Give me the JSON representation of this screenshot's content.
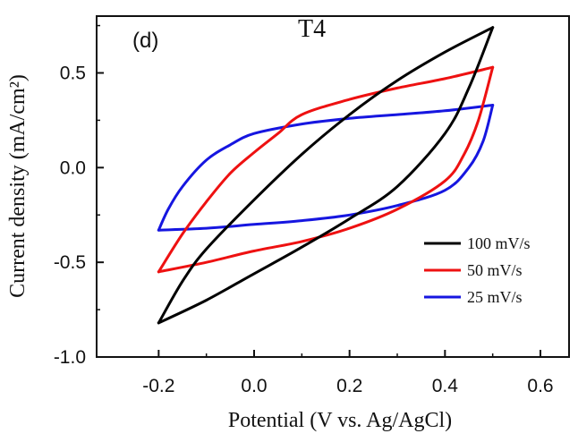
{
  "chart_data": {
    "type": "line",
    "panel_label": "(d)",
    "title": "T4",
    "xlabel": "Potential (V vs. Ag/AgCl)",
    "ylabel": "Current density (mA/cm²)",
    "xlim": [
      -0.33,
      0.66
    ],
    "ylim": [
      -1.0,
      0.8
    ],
    "xticks": [
      -0.2,
      0.0,
      0.2,
      0.4,
      0.6
    ],
    "xtick_labels": [
      "-0.2",
      "0.0",
      "0.2",
      "0.4",
      "0.6"
    ],
    "yticks": [
      -1.0,
      -0.5,
      0.0,
      0.5
    ],
    "ytick_labels": [
      "-1.0",
      "-0.5",
      "0.0",
      "0.5"
    ],
    "legend_position": "lower-right",
    "series": [
      {
        "name": "100 mV/s",
        "color": "#000000",
        "anodic": {
          "x": [
            -0.2,
            -0.15,
            -0.1,
            0.0,
            0.1,
            0.2,
            0.3,
            0.4,
            0.5
          ],
          "y": [
            -0.82,
            -0.6,
            -0.43,
            -0.17,
            0.07,
            0.28,
            0.46,
            0.61,
            0.74
          ]
        },
        "cathodic": {
          "x": [
            0.5,
            0.45,
            0.4,
            0.3,
            0.2,
            0.1,
            0.0,
            -0.1,
            -0.2
          ],
          "y": [
            0.74,
            0.42,
            0.18,
            -0.1,
            -0.27,
            -0.42,
            -0.56,
            -0.7,
            -0.82
          ]
        }
      },
      {
        "name": "50 mV/s",
        "color": "#ee1111",
        "anodic": {
          "x": [
            -0.2,
            -0.15,
            -0.1,
            -0.05,
            0.0,
            0.05,
            0.1,
            0.2,
            0.3,
            0.4,
            0.5
          ],
          "y": [
            -0.55,
            -0.35,
            -0.18,
            -0.03,
            0.08,
            0.18,
            0.28,
            0.36,
            0.42,
            0.47,
            0.53
          ]
        },
        "cathodic": {
          "x": [
            0.5,
            0.47,
            0.44,
            0.4,
            0.3,
            0.2,
            0.1,
            0.0,
            -0.1,
            -0.2
          ],
          "y": [
            0.53,
            0.25,
            0.07,
            -0.07,
            -0.22,
            -0.32,
            -0.39,
            -0.44,
            -0.5,
            -0.55
          ]
        }
      },
      {
        "name": "25 mV/s",
        "color": "#1616e0",
        "anodic": {
          "x": [
            -0.2,
            -0.18,
            -0.15,
            -0.1,
            -0.05,
            0.0,
            0.1,
            0.2,
            0.3,
            0.4,
            0.5
          ],
          "y": [
            -0.33,
            -0.22,
            -0.1,
            0.04,
            0.12,
            0.18,
            0.23,
            0.26,
            0.28,
            0.3,
            0.33
          ]
        },
        "cathodic": {
          "x": [
            0.5,
            0.48,
            0.45,
            0.4,
            0.3,
            0.2,
            0.1,
            0.0,
            -0.1,
            -0.2
          ],
          "y": [
            0.33,
            0.14,
            0.0,
            -0.12,
            -0.2,
            -0.25,
            -0.28,
            -0.3,
            -0.32,
            -0.33
          ]
        }
      }
    ]
  }
}
